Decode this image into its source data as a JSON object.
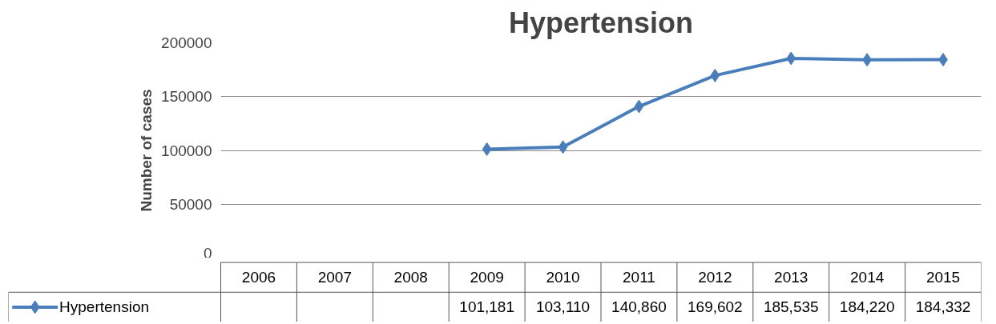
{
  "chart_data": {
    "type": "line",
    "title": "Hypertension",
    "ylabel": "Number of cases",
    "categories": [
      "2006",
      "2007",
      "2008",
      "2009",
      "2010",
      "2011",
      "2012",
      "2013",
      "2014",
      "2015"
    ],
    "series": [
      {
        "name": "Hypertension",
        "color": "#4a7ebb",
        "values": [
          null,
          null,
          null,
          101181,
          103110,
          140860,
          169602,
          185535,
          184220,
          184332
        ],
        "value_labels": [
          null,
          null,
          null,
          "101,181",
          "103,110",
          "140,860",
          "169,602",
          "185,535",
          "184,220",
          "184,332"
        ]
      }
    ],
    "ylim": [
      0,
      200000
    ],
    "yticks": [
      0,
      50000,
      100000,
      150000,
      200000
    ],
    "grid": "y",
    "legend": "bottom",
    "marker": "diamond",
    "line_style": "solid"
  }
}
